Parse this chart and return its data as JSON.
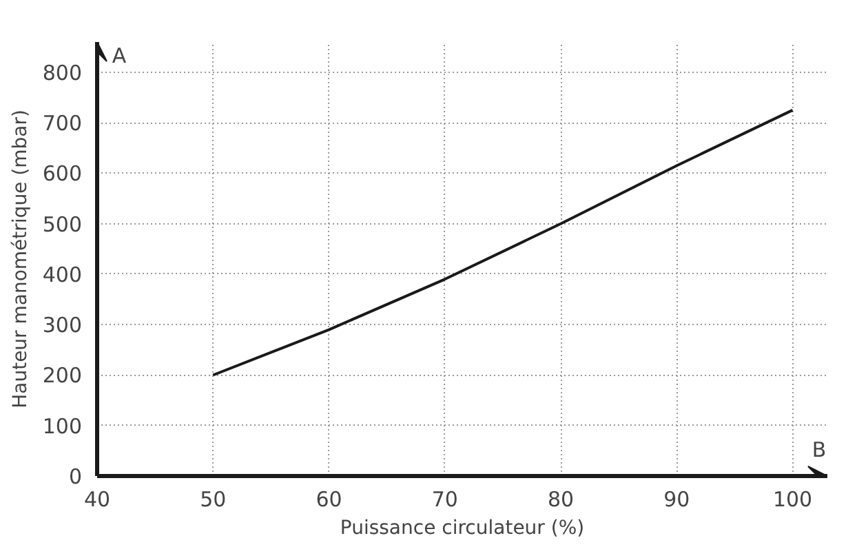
{
  "chart_data": {
    "type": "line",
    "xlabel": "Puissance circulateur (%)",
    "ylabel": "Hauteur manométrique (mbar)",
    "x": [
      50,
      60,
      70,
      80,
      90,
      100
    ],
    "series": [
      {
        "color": "#1a1a1a",
        "values": [
          200,
          290,
          390,
          500,
          615,
          725
        ]
      }
    ],
    "xlim": [
      40,
      103
    ],
    "ylim": [
      0,
      860
    ],
    "xticks": [
      40,
      50,
      60,
      70,
      80,
      90,
      100
    ],
    "yticks": [
      0,
      100,
      200,
      300,
      400,
      500,
      600,
      700,
      800
    ],
    "grid": true,
    "line_style": "solid",
    "annotations": [
      "A",
      "B"
    ]
  }
}
